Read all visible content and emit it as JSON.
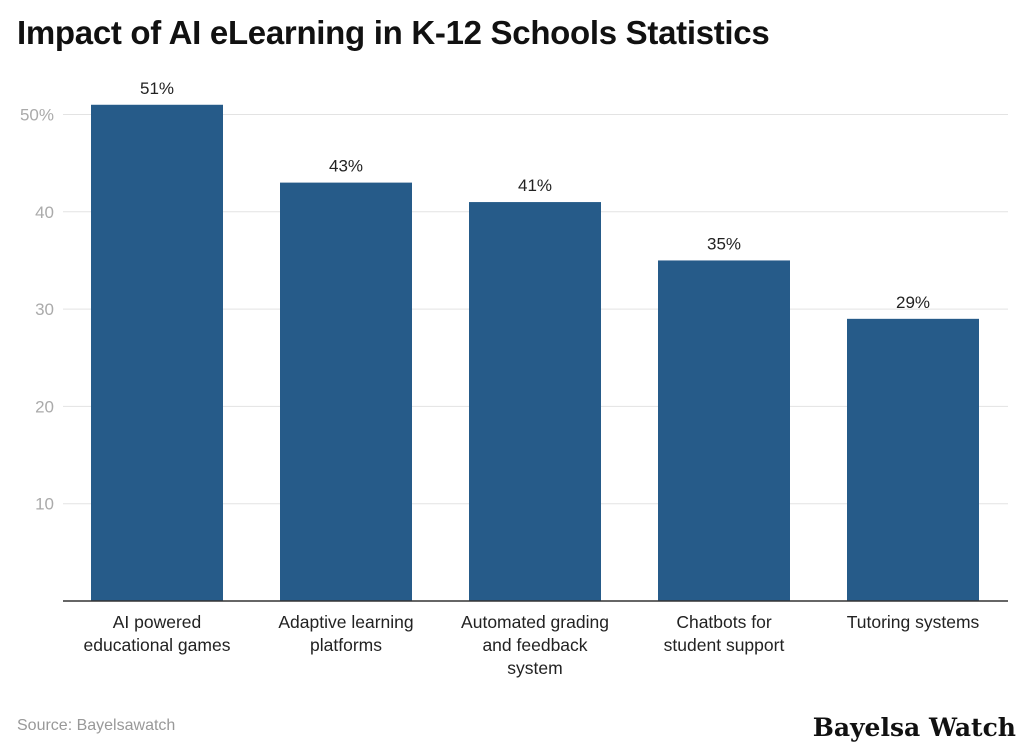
{
  "chart_data": {
    "type": "bar",
    "title": "Impact of AI eLearning in K-12 Schools Statistics",
    "categories": [
      [
        "AI powered",
        "educational games"
      ],
      [
        "Adaptive learning",
        "platforms"
      ],
      [
        "Automated grading",
        "and feedback",
        "system"
      ],
      [
        "Chatbots for",
        "student support"
      ],
      [
        "Tutoring systems"
      ]
    ],
    "values": [
      51,
      43,
      41,
      35,
      29
    ],
    "data_labels": [
      "51%",
      "43%",
      "41%",
      "35%",
      "29%"
    ],
    "yticks": [
      10,
      20,
      30,
      40,
      50
    ],
    "ytick_labels": [
      "10",
      "20",
      "30",
      "40",
      "50%"
    ],
    "ylim": [
      0,
      50
    ],
    "grid": true,
    "bar_color": "#265b89",
    "xlabel": "",
    "ylabel": ""
  },
  "source": "Source: Bayelsawatch",
  "logo": "Bayelsa Watch"
}
